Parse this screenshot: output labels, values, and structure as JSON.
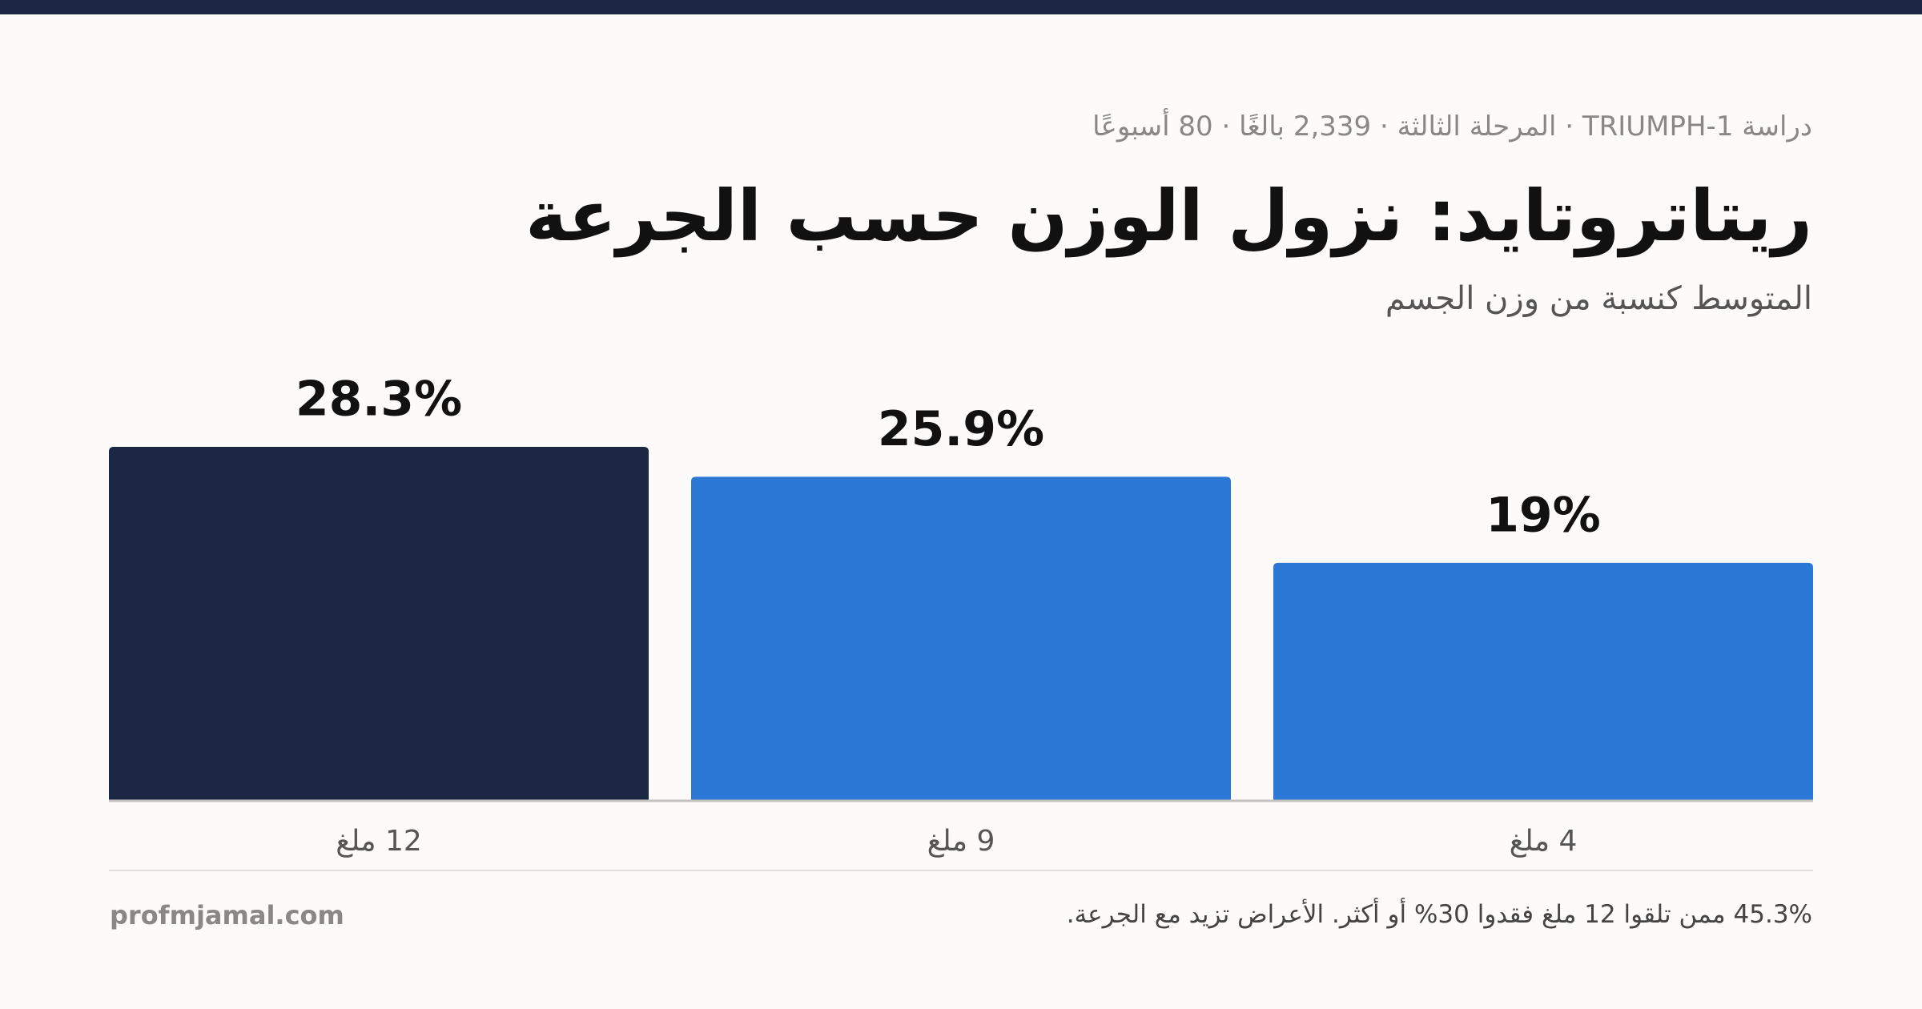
{
  "chart_data": {
    "type": "bar",
    "meta": "دراسة TRIUMPH-1 · المرحلة الثالثة · 2,339 بالغًا · 80 أسبوعًا",
    "title": "ريتاتروتايد: نزول الوزن حسب الجرعة",
    "subtitle": "المتوسط كنسبة من وزن الجسم",
    "categories": [
      "4 ملغ",
      "9 ملغ",
      "12 ملغ"
    ],
    "values": [
      19,
      25.9,
      28.3
    ],
    "value_labels": [
      "19%",
      "25.9%",
      "28.3%"
    ],
    "colors": [
      "#2b78d6",
      "#2b78d6",
      "#1b2743"
    ],
    "ylim": [
      0,
      28.3
    ],
    "direction": "rtl",
    "note": "45.3% ممن تلقوا 12 ملغ فقدوا 30% أو أكثر. الأعراض تزيد مع الجرعة.",
    "source": "profmjamal.com"
  }
}
